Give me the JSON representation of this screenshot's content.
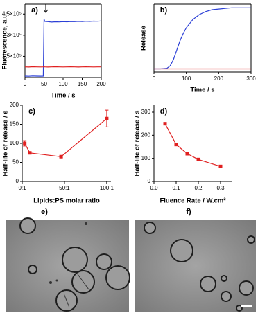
{
  "chart_data": [
    {
      "type": "line",
      "label": "a)",
      "ylabel": "Fluorescence, a.u.",
      "xlabel": "Time / s",
      "frame": true,
      "x": [
        0,
        10,
        20,
        30,
        40,
        48,
        50,
        52,
        60,
        70,
        80,
        90,
        100,
        110,
        120,
        130,
        140,
        150,
        160,
        170,
        180,
        190,
        200
      ],
      "series": [
        {
          "color": "#2b3fd6",
          "values": [
            10000,
            9000,
            11000,
            10000,
            9500,
            10000,
            415000,
            398000,
            396000,
            393000,
            395000,
            394000,
            396000,
            395000,
            397000,
            396000,
            398000,
            397000,
            399000,
            398000,
            400000,
            399000,
            401000
          ]
        },
        {
          "color": "#e02020",
          "values": [
            75000,
            74000,
            76000,
            75000,
            74500,
            75000,
            75500,
            75000,
            74000,
            75000,
            76000,
            75000,
            74500,
            75000,
            75500,
            75000,
            74000,
            75000,
            75500,
            75000,
            74500,
            75000,
            75000
          ]
        }
      ],
      "xlim": [
        0,
        200
      ],
      "xticks": [
        0,
        50,
        100,
        150,
        200
      ],
      "ylim": [
        0,
        520000
      ],
      "yticks": [
        {
          "value": 150000,
          "label": "1.5×10⁵"
        },
        {
          "value": 300000,
          "label": "3×10⁵"
        },
        {
          "value": 450000,
          "label": "4.5×10⁵"
        }
      ]
    },
    {
      "type": "line",
      "label": "b)",
      "ylabel": "Release",
      "xlabel": "Time / s",
      "frame": true,
      "x": [
        0,
        20,
        40,
        50,
        60,
        70,
        80,
        90,
        100,
        120,
        140,
        160,
        180,
        200,
        220,
        240,
        260,
        280,
        300
      ],
      "series": [
        {
          "color": "#2b3fd6",
          "values": [
            0,
            0,
            1,
            5,
            15,
            30,
            45,
            57,
            67,
            80,
            88,
            93,
            96,
            97,
            98,
            99,
            99,
            99,
            99
          ]
        },
        {
          "color": "#e02020",
          "values": [
            0,
            0,
            0,
            0,
            0,
            0,
            0,
            0,
            0,
            0,
            0,
            0,
            0,
            0,
            0,
            0,
            0,
            0,
            0
          ]
        }
      ],
      "xlim": [
        0,
        300
      ],
      "xticks": [
        0,
        100,
        200,
        300
      ],
      "ylim": [
        -5,
        105
      ],
      "yticks": []
    },
    {
      "type": "line",
      "label": "c)",
      "ylabel": "Half-life of release / s",
      "xlabel": "Lipids:PS molar ratio",
      "frame": false,
      "markers": true,
      "x": [
        3,
        9,
        46,
        100
      ],
      "series": [
        {
          "color": "#e02020",
          "values": [
            100,
            75,
            65,
            165
          ],
          "errors": [
            7,
            3,
            2,
            22
          ]
        }
      ],
      "xlim": [
        0,
        105
      ],
      "xticks": [
        {
          "value": 0,
          "label": "0:1"
        },
        {
          "value": 50,
          "label": "50:1"
        },
        {
          "value": 100,
          "label": "100:1"
        }
      ],
      "ylim": [
        0,
        200
      ],
      "yticks": [
        0,
        50,
        100,
        150,
        200
      ]
    },
    {
      "type": "line",
      "label": "d)",
      "ylabel": "Half-life of release / s",
      "xlabel": "Fluence Rate  / W.cm²",
      "frame": false,
      "markers": true,
      "x": [
        0.05,
        0.1,
        0.15,
        0.2,
        0.3
      ],
      "series": [
        {
          "color": "#e02020",
          "values": [
            250,
            160,
            120,
            95,
            65
          ]
        }
      ],
      "xlim": [
        0,
        0.35
      ],
      "xticks": [
        {
          "value": 0,
          "label": "0.0"
        },
        0.1,
        0.2,
        0.3
      ],
      "ylim": [
        0,
        330
      ],
      "yticks": [
        0,
        100,
        200,
        300
      ]
    }
  ],
  "images": [
    {
      "label": "e)"
    },
    {
      "label": "f)"
    }
  ]
}
